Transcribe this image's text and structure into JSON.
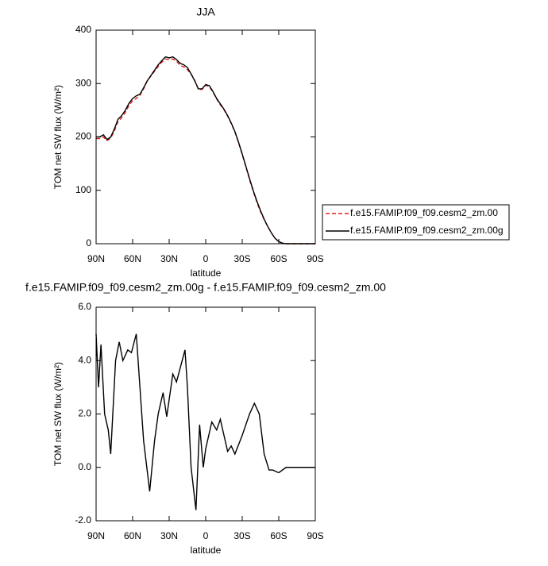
{
  "chart_data": [
    {
      "type": "line",
      "title": "JJA",
      "xlabel": "latitude",
      "ylabel": "TOM net SW flux (W/m²)",
      "xlim": [
        90,
        -90
      ],
      "ylim": [
        0,
        400
      ],
      "xticks": [
        {
          "value": 90,
          "label": "90N"
        },
        {
          "value": 60,
          "label": "60N"
        },
        {
          "value": 30,
          "label": "30N"
        },
        0,
        {
          "value": -30,
          "label": "30S"
        },
        {
          "value": -60,
          "label": "60S"
        },
        {
          "value": -90,
          "label": "90S"
        }
      ],
      "yticks": [
        0,
        100,
        200,
        300,
        400
      ],
      "legend": "right",
      "x": [
        90,
        87,
        84,
        81,
        78,
        75,
        72,
        69,
        66,
        63,
        60,
        57,
        54,
        51,
        48,
        45,
        42,
        39,
        36,
        33,
        30,
        27,
        24,
        21,
        18,
        15,
        12,
        9,
        6,
        3,
        0,
        -3,
        -6,
        -9,
        -12,
        -15,
        -18,
        -21,
        -24,
        -27,
        -30,
        -33,
        -36,
        -39,
        -42,
        -45,
        -48,
        -51,
        -54,
        -57,
        -60,
        -63,
        -66,
        -70,
        -80,
        -90
      ],
      "series": [
        {
          "name": "f.e15.FAMIP.f09_f09.cesm2_zm.00",
          "color": "#e0201b",
          "dashed": true,
          "values": [
            197,
            197,
            200,
            193,
            198,
            211,
            229,
            236,
            246,
            259,
            268,
            272,
            278,
            290,
            305,
            314,
            323,
            332,
            340,
            346,
            345,
            346,
            342,
            334,
            331,
            326,
            318,
            306,
            289,
            289,
            297,
            294,
            284,
            271,
            260,
            251,
            239,
            225,
            209,
            189,
            167,
            144,
            120,
            98,
            78,
            60,
            45,
            32,
            20,
            10,
            4,
            1,
            0,
            0,
            0,
            0
          ]
        },
        {
          "name": "f.e15.FAMIP.f09_f09.cesm2_zm.00g",
          "color": "#000000",
          "dashed": false,
          "values": [
            200,
            200,
            204,
            195,
            200,
            215,
            233,
            240,
            250,
            263,
            272,
            277,
            280,
            292,
            305,
            315,
            325,
            335,
            343,
            350,
            348,
            350,
            345,
            338,
            335,
            330,
            318,
            305,
            290,
            290,
            298,
            296,
            285,
            272,
            262,
            252,
            240,
            226,
            210,
            190,
            168,
            145,
            122,
            100,
            80,
            62,
            46,
            32,
            20,
            10,
            4,
            1,
            0,
            0,
            0,
            0
          ]
        }
      ]
    },
    {
      "type": "line",
      "title": "f.e15.FAMIP.f09_f09.cesm2_zm.00g - f.e15.FAMIP.f09_f09.cesm2_zm.00",
      "xlabel": "latitude",
      "ylabel": "TOM net SW flux (W/m²)",
      "xlim": [
        90,
        -90
      ],
      "ylim": [
        -2,
        6
      ],
      "xticks": [
        {
          "value": 90,
          "label": "90N"
        },
        {
          "value": 60,
          "label": "60N"
        },
        {
          "value": 30,
          "label": "30N"
        },
        0,
        {
          "value": -30,
          "label": "30S"
        },
        {
          "value": -60,
          "label": "60S"
        },
        {
          "value": -90,
          "label": "90S"
        }
      ],
      "yticks": [
        {
          "value": -2,
          "label": "-2.0"
        },
        {
          "value": 0,
          "label": "0.0"
        },
        {
          "value": 2,
          "label": "2.0"
        },
        {
          "value": 4,
          "label": "4.0"
        },
        {
          "value": 6,
          "label": "6.0"
        }
      ],
      "x": [
        90,
        88,
        86,
        83,
        80,
        78,
        74,
        71,
        68,
        64,
        61,
        57,
        54,
        51,
        46,
        42,
        39,
        35,
        32,
        27,
        24,
        17,
        15,
        12,
        8,
        5,
        2,
        0,
        -5,
        -9,
        -12,
        -15,
        -18,
        -21,
        -24,
        -30,
        -36,
        -40,
        -44,
        -48,
        -52,
        -55,
        -60,
        -66,
        -90
      ],
      "series": [
        {
          "color": "#000000",
          "dashed": false,
          "values": [
            5.0,
            3.0,
            4.6,
            2.0,
            1.4,
            0.5,
            4.0,
            4.7,
            4.0,
            4.4,
            4.3,
            5.0,
            3.0,
            1.0,
            -0.9,
            1.0,
            2.0,
            2.8,
            1.9,
            3.5,
            3.2,
            4.4,
            3.0,
            0.0,
            -1.6,
            1.6,
            0.0,
            0.7,
            1.7,
            1.4,
            1.8,
            1.2,
            0.6,
            0.8,
            0.5,
            1.2,
            2.0,
            2.4,
            2.0,
            0.5,
            -0.1,
            -0.1,
            -0.2,
            0.0,
            0.0
          ]
        }
      ]
    }
  ]
}
